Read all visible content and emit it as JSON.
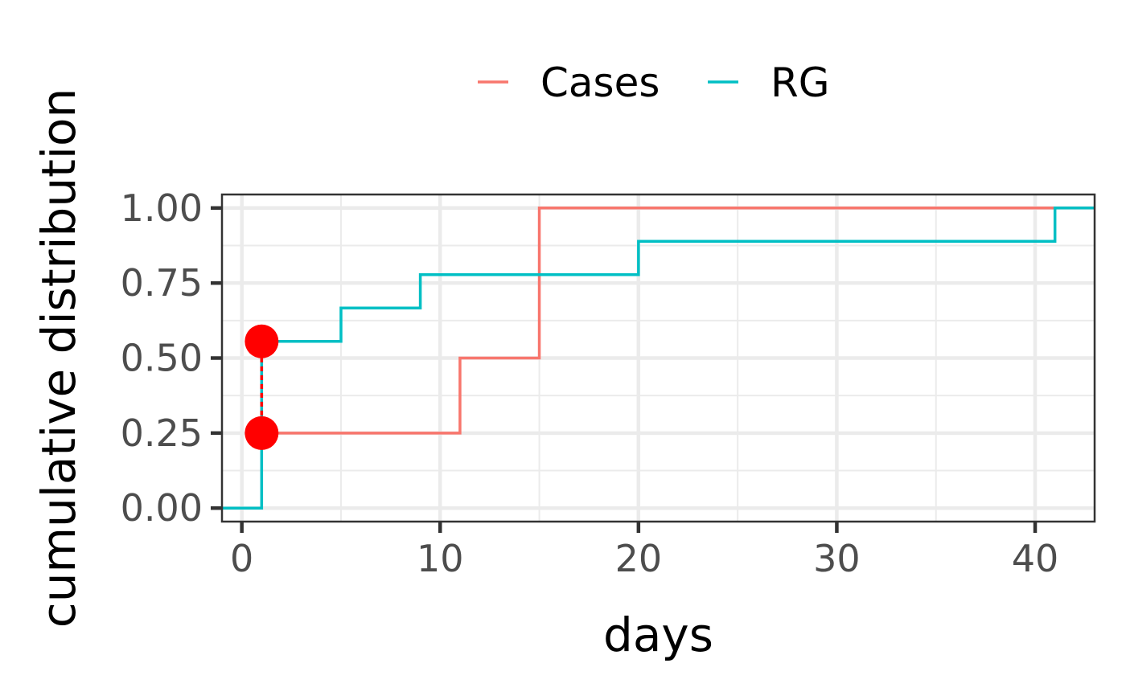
{
  "chart_data": {
    "type": "line",
    "step": true,
    "title": "",
    "xlabel": "days",
    "ylabel": "cumulative distribution",
    "xlim": [
      -1,
      43
    ],
    "ylim": [
      -0.045,
      1.045
    ],
    "x_ticks": [
      0,
      10,
      20,
      30,
      40
    ],
    "x_tick_labels": [
      "0",
      "10",
      "20",
      "30",
      "40"
    ],
    "y_ticks": [
      0,
      0.25,
      0.5,
      0.75,
      1
    ],
    "y_tick_labels": [
      "0.00",
      "0.25",
      "0.50",
      "0.75",
      "1.00"
    ],
    "grid": true,
    "legend_position": "top",
    "series": [
      {
        "name": "Cases",
        "color": "#F8766D",
        "x": [
          1,
          11,
          15,
          43
        ],
        "y": [
          0.25,
          0.5,
          1.0,
          1.0
        ]
      },
      {
        "name": "RG",
        "color": "#00BFC4",
        "x": [
          -1,
          1,
          5,
          9,
          20,
          41,
          43
        ],
        "y": [
          0,
          0.5556,
          0.6667,
          0.7778,
          0.8889,
          1.0,
          1.0
        ]
      }
    ],
    "markers": {
      "color": "#FF0000",
      "points": [
        {
          "x": 1,
          "y": 0.25
        },
        {
          "x": 1,
          "y": 0.5556
        }
      ]
    }
  }
}
